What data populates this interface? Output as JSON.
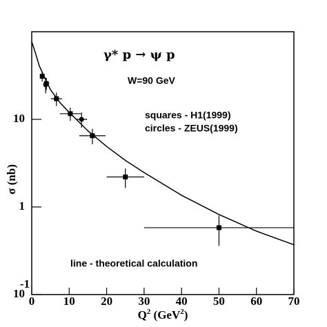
{
  "chart_data": {
    "type": "scatter",
    "x_label": [
      "Q",
      "2",
      " (GeV",
      "2",
      ")"
    ],
    "y_label": "σ (nb)",
    "xlim": [
      0,
      70
    ],
    "xticks": [
      0,
      10,
      20,
      30,
      40,
      50,
      60,
      70
    ],
    "ylim": [
      0.1,
      100
    ],
    "yticks": [
      {
        "value": 0.1,
        "label": "10",
        "superscript": "-1"
      },
      1,
      10
    ],
    "log_y": true,
    "annotations": [
      "γ* p → ψ p",
      "W=90 GeV",
      "squares - H1(1999)",
      "circles - ZEUS(1999)",
      "line - theoretical calculation"
    ],
    "series": [
      {
        "marker": "square",
        "color": "#000000",
        "x": [
          2.8,
          3.9,
          6.6,
          10.3,
          16.2,
          25,
          50
        ],
        "values": [
          31,
          25.6,
          17.2,
          11.6,
          6.5,
          2.2,
          0.58
        ],
        "xerr": [
          0.5,
          0.8,
          1.5,
          2.8,
          3.5,
          5,
          20
        ],
        "yerr": [
          4,
          4,
          3,
          2,
          1.3,
          0.55,
          0.22
        ]
      },
      {
        "marker": "circle",
        "color": "#000000",
        "x": [
          3.7,
          13.3
        ],
        "values": [
          24.8,
          10.0
        ],
        "xerr": [
          0.5,
          1.5
        ],
        "yerr": [
          5,
          2
        ]
      },
      {
        "marker": "line",
        "color": "#000000",
        "x": [
          0,
          1,
          2,
          3,
          5,
          7.5,
          10,
          15,
          20,
          25,
          30,
          40,
          50,
          60,
          70
        ],
        "values": [
          77,
          57,
          41,
          33,
          21.8,
          15.6,
          12.0,
          7.4,
          4.9,
          3.4,
          2.47,
          1.36,
          0.82,
          0.53,
          0.37
        ]
      }
    ]
  }
}
